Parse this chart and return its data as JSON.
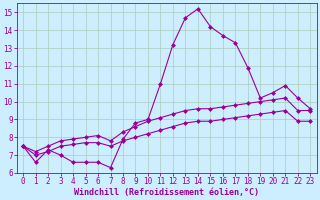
{
  "x": [
    0,
    1,
    2,
    3,
    4,
    5,
    6,
    7,
    8,
    9,
    10,
    11,
    12,
    13,
    14,
    15,
    16,
    17,
    18,
    19,
    20,
    21,
    22,
    23
  ],
  "line1": [
    7.5,
    6.6,
    7.3,
    7.0,
    6.6,
    6.6,
    6.6,
    6.3,
    7.9,
    8.8,
    9.0,
    11.0,
    13.2,
    14.7,
    15.2,
    14.2,
    13.7,
    13.3,
    11.9,
    10.2,
    10.5,
    10.9,
    10.2,
    9.6
  ],
  "line2": [
    7.5,
    7.2,
    7.5,
    7.8,
    7.9,
    8.0,
    8.1,
    7.8,
    8.3,
    8.6,
    8.9,
    9.1,
    9.3,
    9.5,
    9.6,
    9.6,
    9.7,
    9.8,
    9.9,
    10.0,
    10.1,
    10.2,
    9.5,
    9.5
  ],
  "line3": [
    7.5,
    7.0,
    7.2,
    7.5,
    7.6,
    7.7,
    7.7,
    7.5,
    7.8,
    8.0,
    8.2,
    8.4,
    8.6,
    8.8,
    8.9,
    8.9,
    9.0,
    9.1,
    9.2,
    9.3,
    9.4,
    9.5,
    8.9,
    8.9
  ],
  "line_color": "#990099",
  "bg_color": "#cceeff",
  "grid_color": "#aaccbb",
  "xlabel": "Windchill (Refroidissement éolien,°C)",
  "ylim": [
    6,
    15.5
  ],
  "xlim": [
    -0.5,
    23.5
  ],
  "yticks": [
    6,
    7,
    8,
    9,
    10,
    11,
    12,
    13,
    14,
    15
  ],
  "xticks": [
    0,
    1,
    2,
    3,
    4,
    5,
    6,
    7,
    8,
    9,
    10,
    11,
    12,
    13,
    14,
    15,
    16,
    17,
    18,
    19,
    20,
    21,
    22,
    23
  ],
  "tick_fontsize": 5.5,
  "xlabel_fontsize": 6.0,
  "marker_size": 2.5,
  "line_width": 0.8
}
